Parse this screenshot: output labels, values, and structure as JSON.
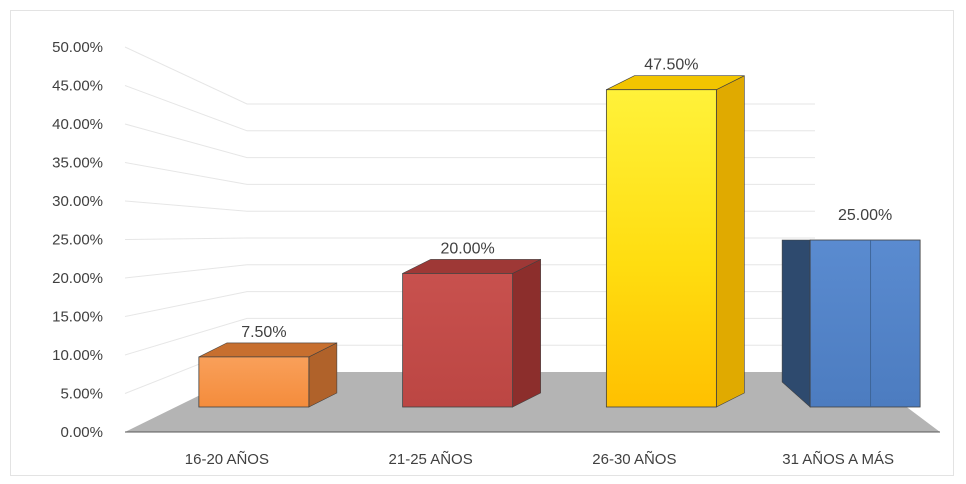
{
  "chart_data": {
    "type": "bar",
    "categories": [
      "16-20 AÑOS",
      "21-25 AÑOS",
      "26-30 AÑOS",
      "31 AÑOS A MÁS"
    ],
    "values": [
      7.5,
      20.0,
      47.5,
      25.0
    ],
    "data_labels": [
      "7.50%",
      "20.00%",
      "47.50%",
      "25.00%"
    ],
    "y_ticks": [
      "0.00%",
      "5.00%",
      "10.00%",
      "15.00%",
      "20.00%",
      "25.00%",
      "30.00%",
      "35.00%",
      "40.00%",
      "45.00%",
      "50.00%"
    ],
    "ylim": [
      0,
      50
    ],
    "title": "",
    "xlabel": "",
    "ylabel": "",
    "grid": true,
    "legend": "none",
    "style": "3d-bar",
    "colors": [
      "#F79646",
      "#C0504D",
      "#FFD700",
      "#4F81BD"
    ]
  }
}
